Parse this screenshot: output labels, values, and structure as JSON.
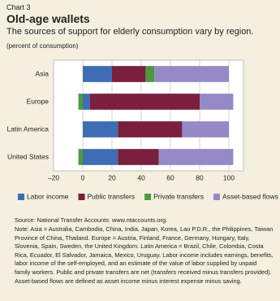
{
  "chart_data": {
    "type": "stacked-barh",
    "label": "Chart 3",
    "title": "Old-age wallets",
    "subtitle": "The sources of support for elderly consumption vary by region.",
    "unit_note": "(percent of consumption)",
    "categories": [
      "Asia",
      "Europe",
      "Latin America",
      "United States"
    ],
    "series": [
      {
        "name": "Labor income",
        "color": "#3e6db4",
        "values": [
          20,
          5,
          24,
          24
        ]
      },
      {
        "name": "Public transfers",
        "color": "#7a1f3d",
        "values": [
          23,
          75,
          44,
          28
        ]
      },
      {
        "name": "Private transfers",
        "color": "#4b9a3f",
        "values": [
          6,
          -3,
          0,
          -3
        ]
      },
      {
        "name": "Asset-based flows",
        "color": "#9589c6",
        "values": [
          51,
          23,
          32,
          51
        ]
      }
    ],
    "xlim": [
      -20,
      110
    ],
    "xticks": [
      {
        "value": -20,
        "label": "–20"
      },
      0,
      20,
      40,
      60,
      80,
      100
    ],
    "grid": true,
    "source": "Source: National Transfer Accounts: www.ntaccounts.org.",
    "note": "Note: Asia = Australia, Cambodia, China, India, Japan, Korea, Lao P.D.R., the Philippines, Taiwan Province of China, Thailand. Europe = Austria, Finland, France, Germany, Hungary, Italy, Slovenia, Spain, Sweden, the United Kingdom. Latin America = Brazil, Chile, Colombia, Costa Rica, Ecuador, El Salvador, Jamaica, Mexico, Uruguay. Labor income includes earnings, benefits, labor income of the self-employed, and an estimate of the value of labor supplied by unpaid family workers. Public and private transfers are net (transfers received minus transfers provided). Asset-based flows are defined as asset income minus interest expense minus saving."
  }
}
